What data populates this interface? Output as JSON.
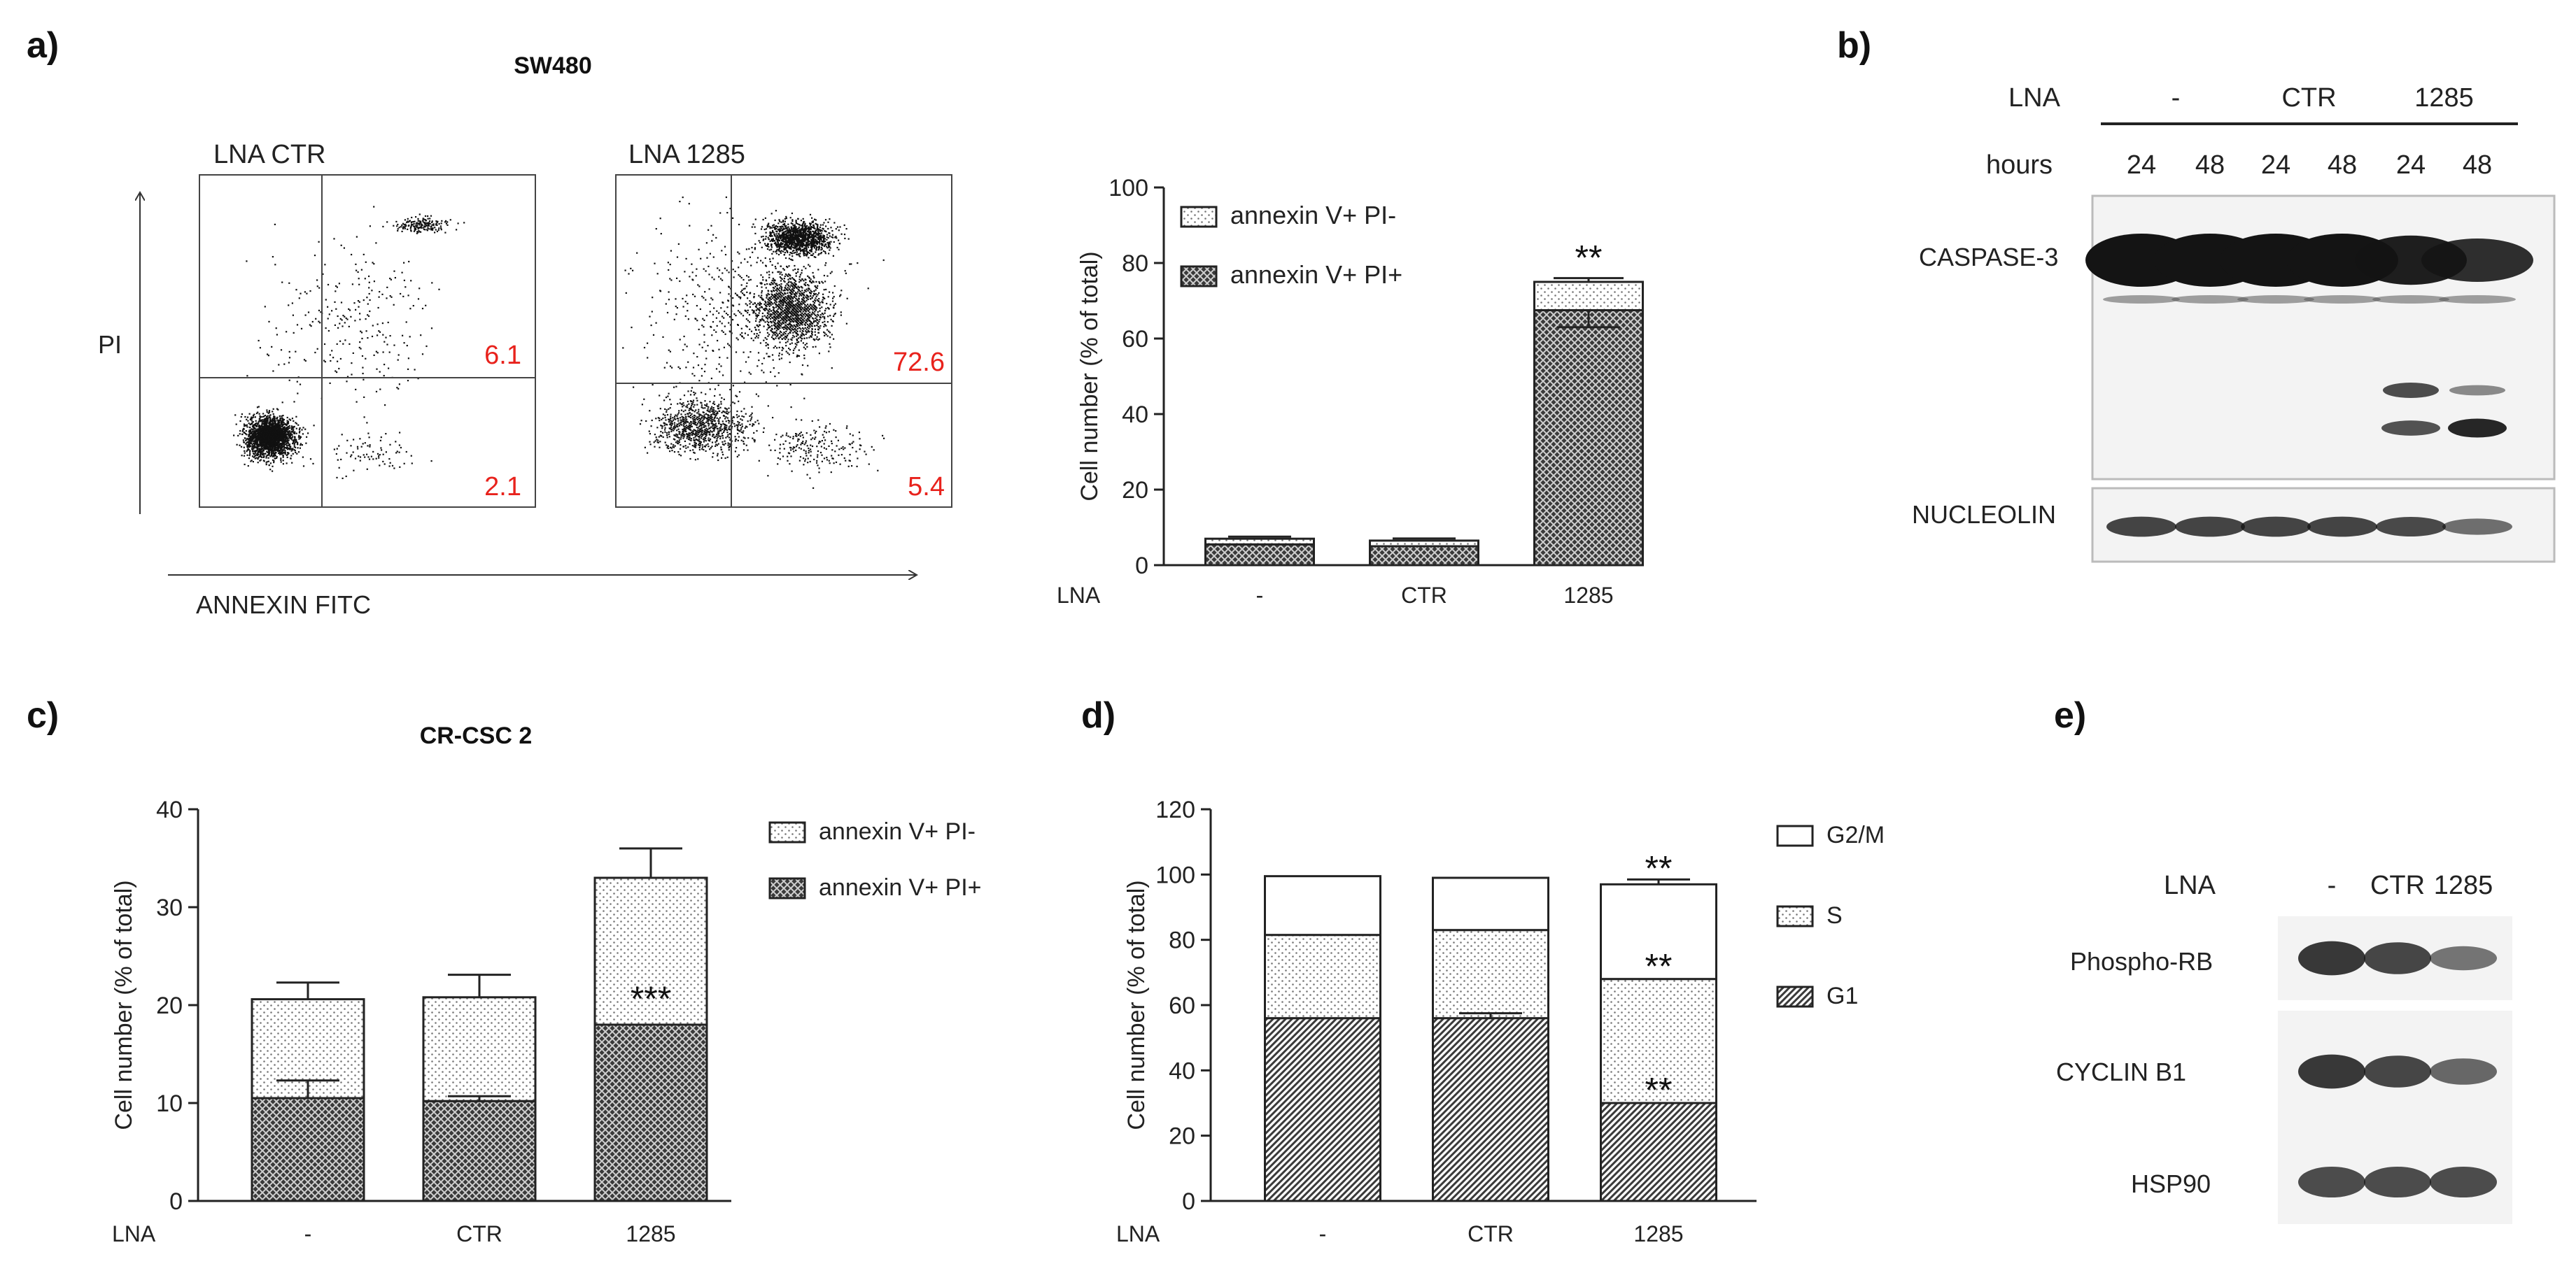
{
  "colors": {
    "text": "#1a1a1a",
    "red": "#e8221c",
    "gridline": "#333333",
    "blot_bg": "#f2f2f2",
    "band": "#141414"
  },
  "panel_a": {
    "letter": "a)",
    "title": "SW480",
    "flow": {
      "y_axis_label": "PI",
      "x_axis_label": "ANNEXIN FITC",
      "plots": [
        {
          "name": "LNA CTR",
          "upper_right_pct": "6.1",
          "lower_right_pct": "2.1"
        },
        {
          "name": "LNA 1285",
          "upper_right_pct": "72.6",
          "lower_right_pct": "5.4"
        }
      ]
    }
  },
  "panel_b": {
    "letter": "b)",
    "row_lna_label": "LNA",
    "row_hours_label": "hours",
    "groups": [
      "-",
      "CTR",
      "1285"
    ],
    "hours": [
      "24",
      "48",
      "24",
      "48",
      "24",
      "48"
    ],
    "blots": [
      {
        "label": "CASPASE-3",
        "main_band": [
          1,
          1,
          1,
          1,
          0.9,
          0.75
        ],
        "cleaved_band_1": [
          0,
          0,
          0,
          0,
          0.75,
          0.3
        ],
        "cleaved_band_2": [
          0,
          0,
          0,
          0,
          0.65,
          0.95
        ]
      },
      {
        "label": "NUCLEOLIN",
        "intensity": [
          0.8,
          0.8,
          0.8,
          0.8,
          0.75,
          0.45
        ]
      }
    ]
  },
  "panel_c": {
    "letter": "c)",
    "title": "CR-CSC 2"
  },
  "panel_d": {
    "letter": "d)"
  },
  "panel_e": {
    "letter": "e)",
    "row_lna_label": "LNA",
    "groups": [
      "-",
      "CTR",
      "1285"
    ],
    "blots": [
      {
        "label": "Phospho-RB",
        "intensity": [
          0.9,
          0.8,
          0.45
        ]
      },
      {
        "label": "CYCLIN B1",
        "intensity": [
          0.9,
          0.8,
          0.55
        ]
      },
      {
        "label": "HSP90",
        "intensity": [
          0.75,
          0.75,
          0.75
        ]
      }
    ]
  },
  "chart_data": [
    {
      "id": "a",
      "type": "bar",
      "stacked": true,
      "categories": [
        "-",
        "CTR",
        "1285"
      ],
      "x_prefix": "LNA",
      "series": [
        {
          "name": "annexin V+ PI+",
          "values": [
            5.5,
            5,
            67.5
          ],
          "pattern": "crosshatch"
        },
        {
          "name": "annexin V+ PI-",
          "values": [
            1.5,
            1.5,
            7.5
          ],
          "pattern": "dots"
        }
      ],
      "error_bars": [
        [
          6.5,
          7,
          76
        ],
        null,
        null
      ],
      "inner_error": [
        null,
        null,
        [
          63,
          67.5
        ]
      ],
      "annotations": [
        {
          "category": "1285",
          "text": "**",
          "level": "top"
        }
      ],
      "ylabel": "Cell number (% of total)",
      "ylim": [
        0,
        100
      ],
      "yticks": [
        0,
        20,
        40,
        60,
        80,
        100
      ],
      "legend": [
        "annexin V+ PI-",
        "annexin V+ PI+"
      ],
      "legend_position": "top-left"
    },
    {
      "id": "c",
      "type": "bar",
      "stacked": true,
      "categories": [
        "-",
        "CTR",
        "1285"
      ],
      "x_prefix": "LNA",
      "series": [
        {
          "name": "annexin V+ PI+",
          "values": [
            10.5,
            10.2,
            18
          ],
          "pattern": "crosshatch"
        },
        {
          "name": "annexin V+ PI-",
          "values": [
            10.1,
            10.6,
            15
          ],
          "pattern": "dots"
        }
      ],
      "err_top": [
        22.3,
        23.1,
        36
      ],
      "err_inner": [
        12.3,
        10.7,
        null
      ],
      "annotations": [
        {
          "category": "1285",
          "text": "***",
          "value": 21
        }
      ],
      "ylabel": "Cell number (% of total)",
      "ylim": [
        0,
        40
      ],
      "yticks": [
        0,
        10,
        20,
        30,
        40
      ],
      "legend": [
        "annexin V+ PI-",
        "annexin V+ PI+"
      ],
      "legend_position": "right"
    },
    {
      "id": "d",
      "type": "bar",
      "stacked": true,
      "categories": [
        "-",
        "CTR",
        "1285"
      ],
      "x_prefix": "LNA",
      "series": [
        {
          "name": "G1",
          "values": [
            56,
            56,
            30
          ],
          "pattern": "diagonal"
        },
        {
          "name": "S",
          "values": [
            25.5,
            27,
            38
          ],
          "pattern": "dots"
        },
        {
          "name": "G2/M",
          "values": [
            18,
            16,
            29
          ],
          "pattern": "white"
        }
      ],
      "err_top": [
        null,
        null,
        98.5
      ],
      "err_inner": [
        null,
        57.5,
        null
      ],
      "annotations": [
        {
          "category": "1285",
          "text": "**",
          "value": 103
        },
        {
          "category": "1285",
          "text": "**",
          "value": 73
        },
        {
          "category": "1285",
          "text": "**",
          "value": 35
        }
      ],
      "ylabel": "Cell number (% of total)",
      "ylim": [
        0,
        120
      ],
      "yticks": [
        0,
        20,
        40,
        60,
        80,
        100,
        120
      ],
      "legend": [
        "G2/M",
        "S",
        "G1"
      ],
      "legend_position": "right"
    }
  ]
}
